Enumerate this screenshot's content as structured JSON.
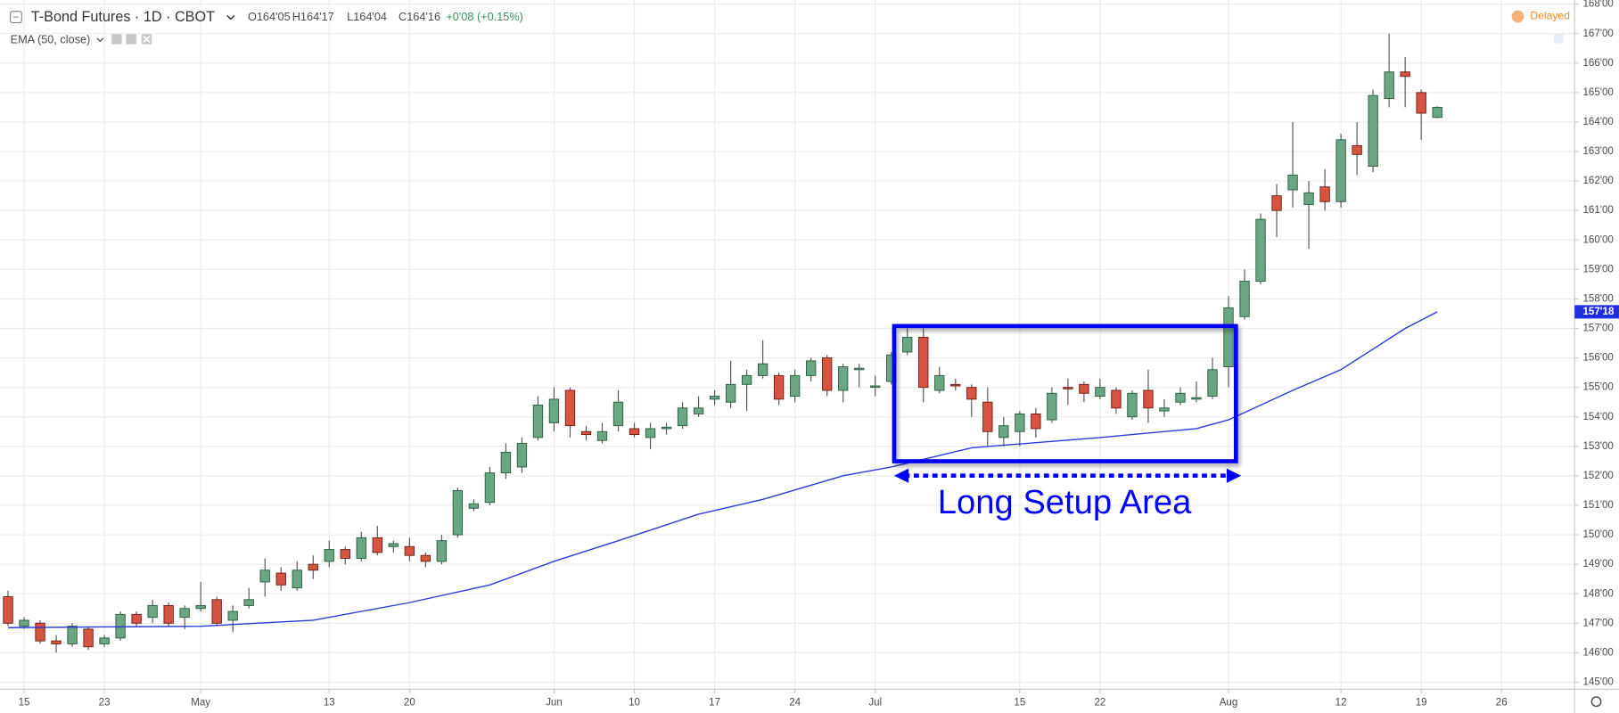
{
  "chart_data": {
    "type": "candlestick",
    "title": "T-Bond Futures · 1D · CBOT",
    "ohlc_labels": [
      "O164'05",
      "H164'17",
      "L164'04",
      "C164'16"
    ],
    "change": "+0'08 (+0.15%)",
    "status": "Delayed",
    "annotation": "Long Setup Area",
    "up_color": "#6ba583",
    "down_color": "#d75442",
    "candles": {
      "open": [
        147.9,
        146.9,
        147.0,
        146.4,
        146.3,
        146.8,
        146.3,
        146.5,
        147.3,
        147.2,
        147.6,
        147.2,
        147.5,
        147.8,
        147.1,
        147.6,
        148.4,
        148.7,
        148.2,
        149.0,
        149.1,
        149.5,
        149.2,
        149.9,
        149.6,
        149.6,
        149.3,
        149.1,
        150.0,
        150.9,
        151.1,
        152.1,
        152.3,
        153.3,
        153.8,
        154.9,
        153.5,
        153.2,
        153.7,
        153.6,
        153.3,
        153.6,
        153.7,
        154.1,
        154.6,
        154.5,
        155.1,
        155.4,
        155.4,
        154.7,
        155.4,
        156.0,
        154.9,
        155.6,
        155.0,
        155.2,
        156.2,
        156.7,
        154.9,
        155.1,
        155.0,
        154.5,
        153.3,
        153.5,
        154.1,
        153.9,
        155.0,
        155.1,
        154.7,
        154.9,
        154.0,
        154.9,
        154.2,
        154.5,
        154.6,
        154.7,
        155.7,
        157.4,
        158.6,
        161.5,
        161.7,
        161.2,
        161.8,
        161.3,
        163.2,
        162.5,
        164.8,
        165.7,
        165.0,
        164.15625
      ],
      "high": [
        148.1,
        147.2,
        147.1,
        146.6,
        147.0,
        146.9,
        146.6,
        147.4,
        147.4,
        147.8,
        147.7,
        147.6,
        148.4,
        147.9,
        147.6,
        148.2,
        149.2,
        148.9,
        149.1,
        149.3,
        149.8,
        149.6,
        150.1,
        150.3,
        149.8,
        149.9,
        149.4,
        150.0,
        151.6,
        151.2,
        152.3,
        153.1,
        153.3,
        154.7,
        155.0,
        155.0,
        153.7,
        153.8,
        154.9,
        153.8,
        153.8,
        153.8,
        154.5,
        154.7,
        154.9,
        155.9,
        155.6,
        156.6,
        155.5,
        155.6,
        156.0,
        156.1,
        155.8,
        155.8,
        155.4,
        156.2,
        157.0,
        157.0,
        155.7,
        155.3,
        155.1,
        155.0,
        154.0,
        154.2,
        154.3,
        155.0,
        155.3,
        155.2,
        155.3,
        155.0,
        154.9,
        155.6,
        154.6,
        155.0,
        155.2,
        156.0,
        158.1,
        159.0,
        160.9,
        161.9,
        164.0,
        162.0,
        162.4,
        163.6,
        164.0,
        165.1,
        167.0,
        166.2,
        165.1,
        164.53125
      ],
      "low": [
        146.9,
        146.8,
        146.3,
        146.0,
        146.2,
        146.1,
        146.2,
        146.4,
        146.9,
        147.0,
        146.9,
        146.8,
        147.4,
        146.9,
        146.7,
        147.5,
        147.9,
        148.1,
        148.1,
        148.5,
        148.9,
        149.0,
        149.1,
        149.3,
        149.4,
        149.1,
        148.9,
        149.0,
        149.9,
        150.8,
        151.0,
        151.9,
        152.1,
        153.2,
        153.5,
        153.3,
        153.2,
        153.1,
        153.5,
        153.3,
        152.9,
        153.4,
        153.6,
        154.0,
        154.4,
        154.3,
        154.2,
        155.3,
        154.4,
        154.5,
        155.2,
        154.7,
        154.5,
        155.0,
        154.7,
        155.1,
        156.1,
        154.5,
        154.8,
        154.9,
        154.0,
        153.0,
        153.0,
        153.0,
        153.3,
        153.8,
        154.4,
        154.5,
        154.6,
        154.1,
        153.9,
        153.8,
        154.0,
        154.4,
        154.5,
        154.6,
        155.0,
        157.3,
        158.5,
        160.1,
        161.1,
        159.7,
        161.0,
        161.1,
        162.2,
        162.3,
        164.5,
        164.5,
        163.4,
        164.125
      ],
      "close": [
        147.0,
        147.1,
        146.4,
        146.3,
        146.9,
        146.2,
        146.5,
        147.3,
        147.0,
        147.6,
        147.0,
        147.5,
        147.6,
        147.0,
        147.4,
        147.8,
        148.8,
        148.3,
        148.8,
        148.8,
        149.5,
        149.2,
        149.9,
        149.4,
        149.7,
        149.3,
        149.1,
        149.8,
        151.5,
        151.05,
        152.1,
        152.8,
        153.1,
        154.4,
        154.6,
        153.7,
        153.4,
        153.5,
        154.5,
        153.4,
        153.6,
        153.65,
        154.3,
        154.3,
        154.7,
        155.1,
        155.4,
        155.8,
        154.6,
        155.4,
        155.9,
        154.9,
        155.7,
        155.65,
        155.05,
        156.1,
        156.7,
        155.0,
        155.4,
        155.05,
        154.6,
        153.5,
        153.7,
        154.1,
        153.6,
        154.8,
        154.95,
        154.8,
        155.0,
        154.3,
        154.8,
        154.3,
        154.3,
        154.8,
        154.65,
        155.6,
        157.7,
        158.6,
        160.7,
        161.0,
        162.2,
        161.6,
        161.3,
        163.4,
        162.9,
        164.9,
        165.7,
        165.55,
        164.3,
        164.5
      ]
    },
    "ema": {
      "name": "EMA (50, close)",
      "color": "#2a3bd8",
      "x": [
        0,
        12,
        19,
        25,
        30,
        34,
        38,
        43,
        47,
        52,
        55,
        60,
        68,
        74,
        76,
        80,
        83,
        87,
        89
      ],
      "values": [
        146.85,
        146.9,
        147.1,
        147.7,
        148.3,
        149.1,
        149.8,
        150.7,
        151.2,
        152.0,
        152.3,
        152.95,
        153.3,
        153.6,
        153.9,
        154.9,
        155.6,
        157.0,
        157.5625
      ]
    },
    "current_price": {
      "value": 157.5625,
      "label": "157'18"
    },
    "xlim": [
      -0.5,
      97.55
    ],
    "xticks": [
      {
        "value": 1,
        "label": "15"
      },
      {
        "value": 6,
        "label": "23"
      },
      {
        "value": 12,
        "label": "May"
      },
      {
        "value": 20,
        "label": "13"
      },
      {
        "value": 25,
        "label": "20"
      },
      {
        "value": 34,
        "label": "Jun"
      },
      {
        "value": 39,
        "label": "10"
      },
      {
        "value": 44,
        "label": "17"
      },
      {
        "value": 49,
        "label": "24"
      },
      {
        "value": 54,
        "label": "Jul"
      },
      {
        "value": 63,
        "label": "15"
      },
      {
        "value": 68,
        "label": "22"
      },
      {
        "value": 76,
        "label": "Aug"
      },
      {
        "value": 83,
        "label": "12"
      },
      {
        "value": 88,
        "label": "19"
      },
      {
        "value": 93,
        "label": "26"
      }
    ],
    "ylim": [
      144.76,
      168.14
    ],
    "yticks": [
      {
        "value": 145,
        "label": "145'00"
      },
      {
        "value": 146,
        "label": "146'00"
      },
      {
        "value": 147,
        "label": "147'00"
      },
      {
        "value": 148,
        "label": "148'00"
      },
      {
        "value": 149,
        "label": "149'00"
      },
      {
        "value": 150,
        "label": "150'00"
      },
      {
        "value": 151,
        "label": "151'00"
      },
      {
        "value": 152,
        "label": "152'00"
      },
      {
        "value": 153,
        "label": "153'00"
      },
      {
        "value": 154,
        "label": "154'00"
      },
      {
        "value": 155,
        "label": "155'00"
      },
      {
        "value": 156,
        "label": "156'00"
      },
      {
        "value": 157,
        "label": "157'00"
      },
      {
        "value": 158,
        "label": "158'00"
      },
      {
        "value": 159,
        "label": "159'00"
      },
      {
        "value": 160,
        "label": "160'00"
      },
      {
        "value": 161,
        "label": "161'00"
      },
      {
        "value": 162,
        "label": "162'00"
      },
      {
        "value": 163,
        "label": "163'00"
      },
      {
        "value": 164,
        "label": "164'00"
      },
      {
        "value": 165,
        "label": "165'00"
      },
      {
        "value": 166,
        "label": "166'00"
      },
      {
        "value": 167,
        "label": "167'00"
      },
      {
        "value": 168,
        "label": "168'00"
      }
    ],
    "grid": true
  }
}
